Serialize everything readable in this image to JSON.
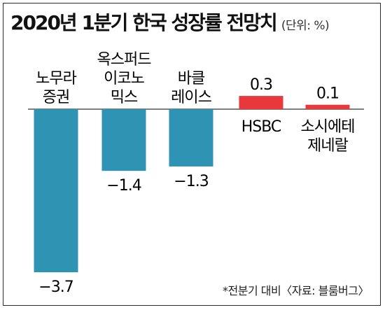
{
  "title": "2020년 1분기 한국 성장률 전망치",
  "unit": "(단위: %)",
  "footnote": "*전분기 대비〈자료: 블룸버그〉",
  "colors": {
    "negative": "#2f93b4",
    "positive": "#e8383b",
    "axis": "#555555"
  },
  "chart_data": {
    "type": "bar",
    "title": "2020년 1분기 한국 성장률 전망치",
    "ylabel": "(단위: %)",
    "categories": [
      [
        "노무라",
        "증권"
      ],
      [
        "옥스퍼드",
        "이코노",
        "믹스"
      ],
      [
        "바클",
        "레이스"
      ],
      [
        "HSBC"
      ],
      [
        "소시에테",
        "제네랄"
      ]
    ],
    "values": [
      -3.7,
      -1.4,
      -1.3,
      0.3,
      0.1
    ],
    "value_labels": [
      "−3.7",
      "−1.4",
      "−1.3",
      "0.3",
      "0.1"
    ],
    "ylim": [
      -3.7,
      0.3
    ],
    "grid": false,
    "legend": "none"
  }
}
